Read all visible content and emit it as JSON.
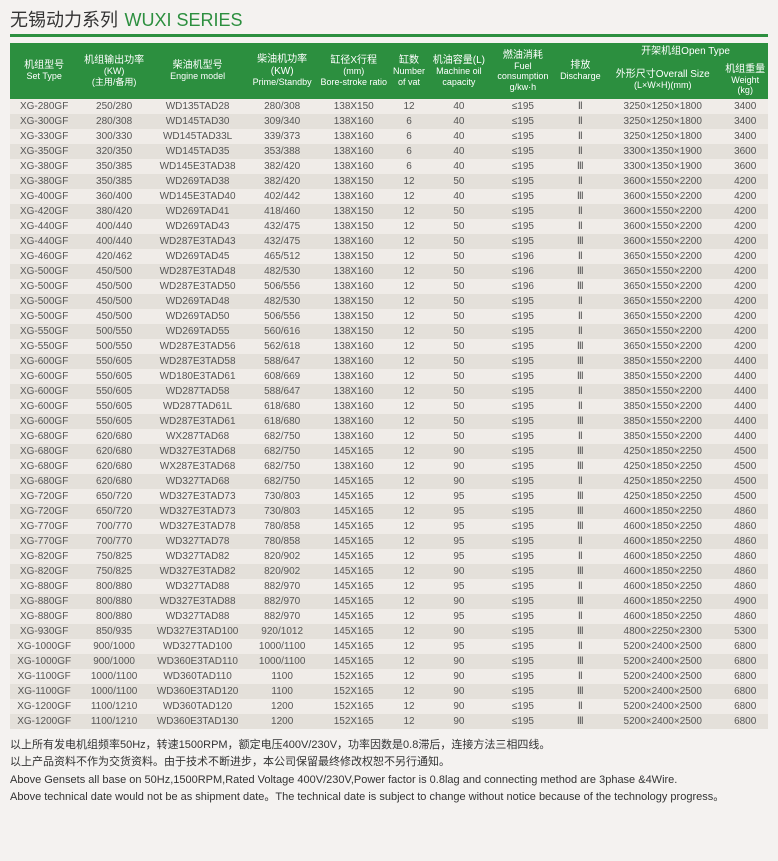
{
  "title": {
    "cn": "无锡动力系列",
    "en": "WUXI SERIES"
  },
  "header": {
    "setType": {
      "cn": "机组型号",
      "en": "Set Type"
    },
    "output": {
      "cn": "机组输出功率",
      "cn2": "(KW)",
      "cn3": "(主用/备用)"
    },
    "engineModel": {
      "cn": "柴油机型号",
      "en": "Engine model"
    },
    "enginePower": {
      "cn": "柴油机功率(KW)",
      "en": "Prime/Standby"
    },
    "boreStroke": {
      "cn": "缸径X行程",
      "cn2": "(mm)",
      "en": "Bore-stroke ratio"
    },
    "vat": {
      "cn": "缸数",
      "en": "Number",
      "en2": "of vat"
    },
    "oil": {
      "cn": "机油容量(L)",
      "en": "Machine oil",
      "en2": "capacity"
    },
    "fuel": {
      "cn": "燃油消耗",
      "en": "Fuel consumption",
      "en2": "g/kw·h"
    },
    "discharge": {
      "cn": "排放",
      "en": "Discharge"
    },
    "openType": {
      "cn": "开架机组",
      "en": "Open Type"
    },
    "overallSize": {
      "cn": "外形尺寸",
      "en": "Overall Size",
      "en2": "(L×W×H)(mm)"
    },
    "weight": {
      "cn": "机组重量",
      "en": "Weight (kg)"
    }
  },
  "colWidths": [
    "63",
    "66",
    "88",
    "68",
    "64",
    "38",
    "54",
    "64",
    "42",
    "110",
    "42"
  ],
  "rows": [
    [
      "XG-280GF",
      "250/280",
      "WD135TAD28",
      "280/308",
      "138X150",
      "12",
      "40",
      "≤195",
      "Ⅱ",
      "3250×1250×1800",
      "3400"
    ],
    [
      "XG-300GF",
      "280/308",
      "WD145TAD30",
      "309/340",
      "138X160",
      "6",
      "40",
      "≤195",
      "Ⅱ",
      "3250×1250×1800",
      "3400"
    ],
    [
      "XG-330GF",
      "300/330",
      "WD145TAD33L",
      "339/373",
      "138X160",
      "6",
      "40",
      "≤195",
      "Ⅱ",
      "3250×1250×1800",
      "3400"
    ],
    [
      "XG-350GF",
      "320/350",
      "WD145TAD35",
      "353/388",
      "138X160",
      "6",
      "40",
      "≤195",
      "Ⅱ",
      "3300×1350×1900",
      "3600"
    ],
    [
      "XG-380GF",
      "350/385",
      "WD145E3TAD38",
      "382/420",
      "138X160",
      "6",
      "40",
      "≤195",
      "Ⅲ",
      "3300×1350×1900",
      "3600"
    ],
    [
      "XG-380GF",
      "350/385",
      "WD269TAD38",
      "382/420",
      "138X150",
      "12",
      "50",
      "≤195",
      "Ⅱ",
      "3600×1550×2200",
      "4200"
    ],
    [
      "XG-400GF",
      "360/400",
      "WD145E3TAD40",
      "402/442",
      "138X160",
      "12",
      "40",
      "≤195",
      "Ⅲ",
      "3600×1550×2200",
      "4200"
    ],
    [
      "XG-420GF",
      "380/420",
      "WD269TAD41",
      "418/460",
      "138X150",
      "12",
      "50",
      "≤195",
      "Ⅱ",
      "3600×1550×2200",
      "4200"
    ],
    [
      "XG-440GF",
      "400/440",
      "WD269TAD43",
      "432/475",
      "138X150",
      "12",
      "50",
      "≤195",
      "Ⅱ",
      "3600×1550×2200",
      "4200"
    ],
    [
      "XG-440GF",
      "400/440",
      "WD287E3TAD43",
      "432/475",
      "138X160",
      "12",
      "50",
      "≤195",
      "Ⅲ",
      "3600×1550×2200",
      "4200"
    ],
    [
      "XG-460GF",
      "420/462",
      "WD269TAD45",
      "465/512",
      "138X150",
      "12",
      "50",
      "≤196",
      "Ⅱ",
      "3650×1550×2200",
      "4200"
    ],
    [
      "XG-500GF",
      "450/500",
      "WD287E3TAD48",
      "482/530",
      "138X160",
      "12",
      "50",
      "≤196",
      "Ⅲ",
      "3650×1550×2200",
      "4200"
    ],
    [
      "XG-500GF",
      "450/500",
      "WD287E3TAD50",
      "506/556",
      "138X160",
      "12",
      "50",
      "≤196",
      "Ⅲ",
      "3650×1550×2200",
      "4200"
    ],
    [
      "XG-500GF",
      "450/500",
      "WD269TAD48",
      "482/530",
      "138X150",
      "12",
      "50",
      "≤195",
      "Ⅱ",
      "3650×1550×2200",
      "4200"
    ],
    [
      "XG-500GF",
      "450/500",
      "WD269TAD50",
      "506/556",
      "138X150",
      "12",
      "50",
      "≤195",
      "Ⅱ",
      "3650×1550×2200",
      "4200"
    ],
    [
      "XG-550GF",
      "500/550",
      "WD269TAD55",
      "560/616",
      "138X150",
      "12",
      "50",
      "≤195",
      "Ⅱ",
      "3650×1550×2200",
      "4200"
    ],
    [
      "XG-550GF",
      "500/550",
      "WD287E3TAD56",
      "562/618",
      "138X160",
      "12",
      "50",
      "≤195",
      "Ⅲ",
      "3650×1550×2200",
      "4200"
    ],
    [
      "XG-600GF",
      "550/605",
      "WD287E3TAD58",
      "588/647",
      "138X160",
      "12",
      "50",
      "≤195",
      "Ⅲ",
      "3850×1550×2200",
      "4400"
    ],
    [
      "XG-600GF",
      "550/605",
      "WD180E3TAD61",
      "608/669",
      "138X160",
      "12",
      "50",
      "≤195",
      "Ⅲ",
      "3850×1550×2200",
      "4400"
    ],
    [
      "XG-600GF",
      "550/605",
      "WD287TAD58",
      "588/647",
      "138X160",
      "12",
      "50",
      "≤195",
      "Ⅱ",
      "3850×1550×2200",
      "4400"
    ],
    [
      "XG-600GF",
      "550/605",
      "WD287TAD61L",
      "618/680",
      "138X160",
      "12",
      "50",
      "≤195",
      "Ⅱ",
      "3850×1550×2200",
      "4400"
    ],
    [
      "XG-600GF",
      "550/605",
      "WD287E3TAD61",
      "618/680",
      "138X160",
      "12",
      "50",
      "≤195",
      "Ⅲ",
      "3850×1550×2200",
      "4400"
    ],
    [
      "XG-680GF",
      "620/680",
      "WX287TAD68",
      "682/750",
      "138X160",
      "12",
      "50",
      "≤195",
      "Ⅱ",
      "3850×1550×2200",
      "4400"
    ],
    [
      "XG-680GF",
      "620/680",
      "WD327E3TAD68",
      "682/750",
      "145X165",
      "12",
      "90",
      "≤195",
      "Ⅲ",
      "4250×1850×2250",
      "4500"
    ],
    [
      "XG-680GF",
      "620/680",
      "WX287E3TAD68",
      "682/750",
      "138X160",
      "12",
      "90",
      "≤195",
      "Ⅲ",
      "4250×1850×2250",
      "4500"
    ],
    [
      "XG-680GF",
      "620/680",
      "WD327TAD68",
      "682/750",
      "145X165",
      "12",
      "90",
      "≤195",
      "Ⅱ",
      "4250×1850×2250",
      "4500"
    ],
    [
      "XG-720GF",
      "650/720",
      "WD327E3TAD73",
      "730/803",
      "145X165",
      "12",
      "95",
      "≤195",
      "Ⅲ",
      "4250×1850×2250",
      "4500"
    ],
    [
      "XG-720GF",
      "650/720",
      "WD327E3TAD73",
      "730/803",
      "145X165",
      "12",
      "95",
      "≤195",
      "Ⅲ",
      "4600×1850×2250",
      "4860"
    ],
    [
      "XG-770GF",
      "700/770",
      "WD327E3TAD78",
      "780/858",
      "145X165",
      "12",
      "95",
      "≤195",
      "Ⅲ",
      "4600×1850×2250",
      "4860"
    ],
    [
      "XG-770GF",
      "700/770",
      "WD327TAD78",
      "780/858",
      "145X165",
      "12",
      "95",
      "≤195",
      "Ⅱ",
      "4600×1850×2250",
      "4860"
    ],
    [
      "XG-820GF",
      "750/825",
      "WD327TAD82",
      "820/902",
      "145X165",
      "12",
      "95",
      "≤195",
      "Ⅱ",
      "4600×1850×2250",
      "4860"
    ],
    [
      "XG-820GF",
      "750/825",
      "WD327E3TAD82",
      "820/902",
      "145X165",
      "12",
      "90",
      "≤195",
      "Ⅲ",
      "4600×1850×2250",
      "4860"
    ],
    [
      "XG-880GF",
      "800/880",
      "WD327TAD88",
      "882/970",
      "145X165",
      "12",
      "95",
      "≤195",
      "Ⅱ",
      "4600×1850×2250",
      "4860"
    ],
    [
      "XG-880GF",
      "800/880",
      "WD327E3TAD88",
      "882/970",
      "145X165",
      "12",
      "90",
      "≤195",
      "Ⅲ",
      "4600×1850×2250",
      "4900"
    ],
    [
      "XG-880GF",
      "800/880",
      "WD327TAD88",
      "882/970",
      "145X165",
      "12",
      "95",
      "≤195",
      "Ⅱ",
      "4600×1850×2250",
      "4860"
    ],
    [
      "XG-930GF",
      "850/935",
      "WD327E3TAD100",
      "920/1012",
      "145X165",
      "12",
      "90",
      "≤195",
      "Ⅲ",
      "4800×2250×2300",
      "5300"
    ],
    [
      "XG-1000GF",
      "900/1000",
      "WD327TAD100",
      "1000/1100",
      "145X165",
      "12",
      "95",
      "≤195",
      "Ⅱ",
      "5200×2400×2500",
      "6800"
    ],
    [
      "XG-1000GF",
      "900/1000",
      "WD360E3TAD110",
      "1000/1100",
      "145X165",
      "12",
      "90",
      "≤195",
      "Ⅲ",
      "5200×2400×2500",
      "6800"
    ],
    [
      "XG-1100GF",
      "1000/1100",
      "WD360TAD110",
      "1100",
      "152X165",
      "12",
      "90",
      "≤195",
      "Ⅱ",
      "5200×2400×2500",
      "6800"
    ],
    [
      "XG-1100GF",
      "1000/1100",
      "WD360E3TAD120",
      "1100",
      "152X165",
      "12",
      "90",
      "≤195",
      "Ⅲ",
      "5200×2400×2500",
      "6800"
    ],
    [
      "XG-1200GF",
      "1100/1210",
      "WD360TAD120",
      "1200",
      "152X165",
      "12",
      "90",
      "≤195",
      "Ⅱ",
      "5200×2400×2500",
      "6800"
    ],
    [
      "XG-1200GF",
      "1100/1210",
      "WD360E3TAD130",
      "1200",
      "152X165",
      "12",
      "90",
      "≤195",
      "Ⅲ",
      "5200×2400×2500",
      "6800"
    ]
  ],
  "footnotes": [
    "以上所有发电机组频率50Hz，转速1500RPM，额定电压400V/230V，功率因数是0.8滞后，连接方法三相四线。",
    "以上产品资料不作为交货资料。由于技术不断进步，本公司保留最终修改权恕不另行通知。",
    "Above Gensets all base on 50Hz,1500RPM,Rated Voltage 400V/230V,Power factor is 0.8lag and connecting method are 3phase &4Wire.",
    "Above technical date would not be as shipment date。The technical date is subject to change without notice because of the technology progress。"
  ],
  "style": {
    "headerBg": "#2c8f3f",
    "rowOddBg": "#f0ece8",
    "rowEvenBg": "#e4e0da"
  }
}
